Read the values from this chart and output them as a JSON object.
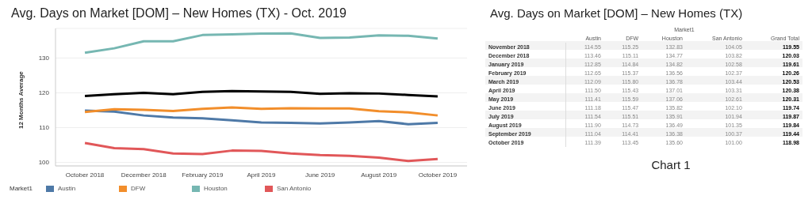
{
  "chart_data": [
    {
      "type": "line",
      "title": "Avg. Days on Market [DOM] – New Homes (TX) - Oct. 2019",
      "ylabel": "12 Months Average",
      "legend_title": "Market1",
      "x": [
        "2018-10",
        "2018-11",
        "2018-12",
        "2019-01",
        "2019-02",
        "2019-03",
        "2019-04",
        "2019-05",
        "2019-06",
        "2019-07",
        "2019-08",
        "2019-09",
        "2019-10"
      ],
      "xlim": [
        "2018-09",
        "2019-11"
      ],
      "xticks": [
        {
          "value": "2018-10",
          "label": "October 2018"
        },
        {
          "value": "2018-12",
          "label": "December 2018"
        },
        {
          "value": "2019-02",
          "label": "February 2019"
        },
        {
          "value": "2019-04",
          "label": "April 2019"
        },
        {
          "value": "2019-06",
          "label": "June 2019"
        },
        {
          "value": "2019-08",
          "label": "August 2019"
        },
        {
          "value": "2019-10",
          "label": "October 2019"
        }
      ],
      "series": [
        {
          "name": "Austin",
          "color": "#4e79a7",
          "values": [
            114.9,
            114.6,
            113.5,
            112.9,
            112.7,
            112.1,
            111.5,
            111.4,
            111.2,
            111.5,
            111.9,
            111.0,
            111.4
          ]
        },
        {
          "name": "DFW",
          "color": "#f28e2b",
          "values": [
            114.5,
            115.3,
            115.1,
            114.8,
            115.4,
            115.8,
            115.4,
            115.6,
            115.5,
            115.5,
            114.7,
            114.4,
            113.5
          ]
        },
        {
          "name": "Houston",
          "color": "#76b7b2",
          "values": [
            131.5,
            132.8,
            134.8,
            134.8,
            136.6,
            136.8,
            137.0,
            137.1,
            135.8,
            135.9,
            136.5,
            136.4,
            135.6
          ]
        },
        {
          "name": "San Antonio",
          "color": "#e15759",
          "values": [
            105.6,
            104.1,
            103.8,
            102.6,
            102.4,
            103.4,
            103.3,
            102.6,
            102.1,
            101.9,
            101.4,
            100.4,
            101.0
          ]
        },
        {
          "color": "#000000",
          "values": [
            119.1,
            119.6,
            120.0,
            119.6,
            120.3,
            120.5,
            120.4,
            120.3,
            119.7,
            119.9,
            119.8,
            119.4,
            119.0
          ]
        }
      ],
      "ylim": [
        99,
        138.5
      ],
      "yticks": [
        100,
        110,
        120,
        130
      ],
      "grid": "y",
      "legend": "bottom",
      "marker": "none",
      "line_style": "solid"
    },
    {
      "type": "other",
      "title": "Avg. Days on Market [DOM] – New Homes (TX)",
      "legend_title": "Market1",
      "categories": [
        "November 2018",
        "December 2018",
        "January 2019",
        "February 2019",
        "March 2019",
        "April 2019",
        "May 2019",
        "June 2019",
        "July 2019",
        "August 2019",
        "September 2019",
        "October 2019"
      ],
      "series": [
        {
          "name": "Austin",
          "values": [
            114.55,
            113.46,
            112.85,
            112.65,
            112.09,
            111.5,
            111.41,
            111.18,
            111.54,
            111.9,
            111.04,
            111.39
          ],
          "value_labels": [
            "114.55",
            "113.46",
            "112.85",
            "112.65",
            "112.09",
            "111.50",
            "111.41",
            "111.18",
            "111.54",
            "111.90",
            "111.04",
            "111.39"
          ]
        },
        {
          "name": "DFW",
          "values": [
            115.25,
            115.11,
            114.84,
            115.37,
            115.8,
            115.43,
            115.59,
            115.47,
            115.51,
            114.73,
            114.41,
            113.45
          ],
          "value_labels": [
            "115.25",
            "115.11",
            "114.84",
            "115.37",
            "115.80",
            "115.43",
            "115.59",
            "115.47",
            "115.51",
            "114.73",
            "114.41",
            "113.45"
          ]
        },
        {
          "name": "Houston",
          "values": [
            132.83,
            134.77,
            134.82,
            136.56,
            136.78,
            137.01,
            137.06,
            135.82,
            135.91,
            136.49,
            136.38,
            135.6
          ],
          "value_labels": [
            "132.83",
            "134.77",
            "134.82",
            "136.56",
            "136.78",
            "137.01",
            "137.06",
            "135.82",
            "135.91",
            "136.49",
            "136.38",
            "135.60"
          ]
        },
        {
          "name": "San Antonio",
          "values": [
            104.05,
            103.82,
            102.58,
            102.37,
            103.44,
            103.31,
            102.61,
            102.1,
            101.94,
            101.35,
            100.37,
            101.0
          ],
          "value_labels": [
            "104.05",
            "103.82",
            "102.58",
            "102.37",
            "103.44",
            "103.31",
            "102.61",
            "102.10",
            "101.94",
            "101.35",
            "100.37",
            "101.00"
          ]
        },
        {
          "name": "Grand Total",
          "values": [
            119.55,
            120.03,
            119.61,
            120.26,
            120.53,
            120.38,
            120.31,
            119.74,
            119.87,
            119.84,
            119.44,
            118.98
          ],
          "value_labels": [
            "119.55",
            "120.03",
            "119.61",
            "120.26",
            "120.53",
            "120.38",
            "120.31",
            "119.74",
            "119.87",
            "119.84",
            "119.44",
            "118.98"
          ]
        }
      ],
      "annotations": [
        "Chart 1"
      ]
    }
  ]
}
